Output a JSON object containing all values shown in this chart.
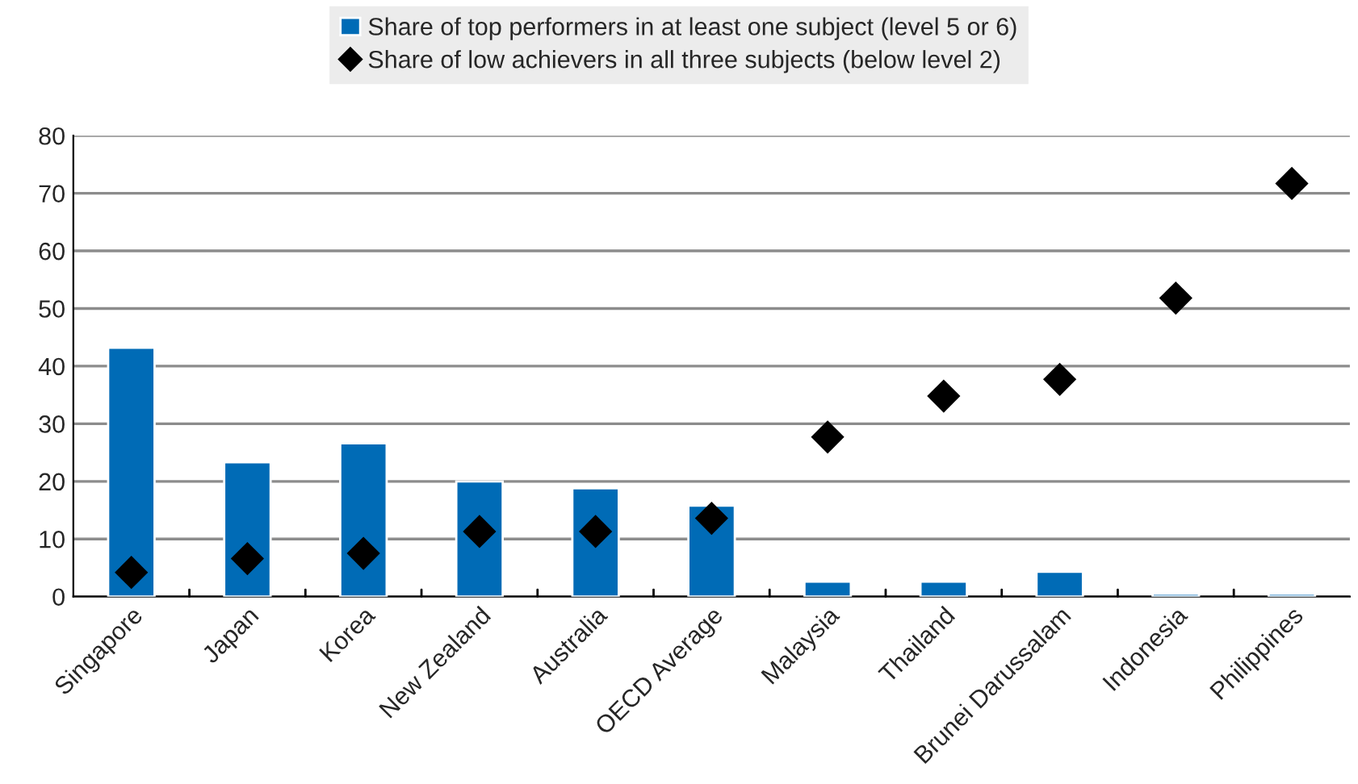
{
  "chart_data": {
    "type": "bar",
    "categories": [
      "Singapore",
      "Japan",
      "Korea",
      "New Zealand",
      "Australia",
      "OECD Average",
      "Malaysia",
      "Thailand",
      "Brunei Darussalam",
      "Indonesia",
      "Philippines"
    ],
    "series": [
      {
        "name": "Share of top performers in at least one subject (level 5 or 6)",
        "color": "#006bb6",
        "values": [
          43.2,
          23.3,
          26.6,
          20.0,
          18.8,
          15.8,
          2.6,
          2.6,
          4.3,
          0.5,
          0.5
        ]
      },
      {
        "name": "Share of low achievers in all three subjects (below level 2)",
        "type": "scatter",
        "color": "#000000",
        "marker": "diamond",
        "values": [
          4.2,
          6.6,
          7.5,
          11.3,
          11.3,
          13.6,
          27.7,
          34.8,
          37.7,
          51.8,
          71.7
        ]
      }
    ],
    "ylim": [
      0,
      80
    ],
    "yticks": [
      0,
      10,
      20,
      30,
      40,
      50,
      60,
      70,
      80
    ],
    "grid": "y",
    "legend": "top"
  }
}
